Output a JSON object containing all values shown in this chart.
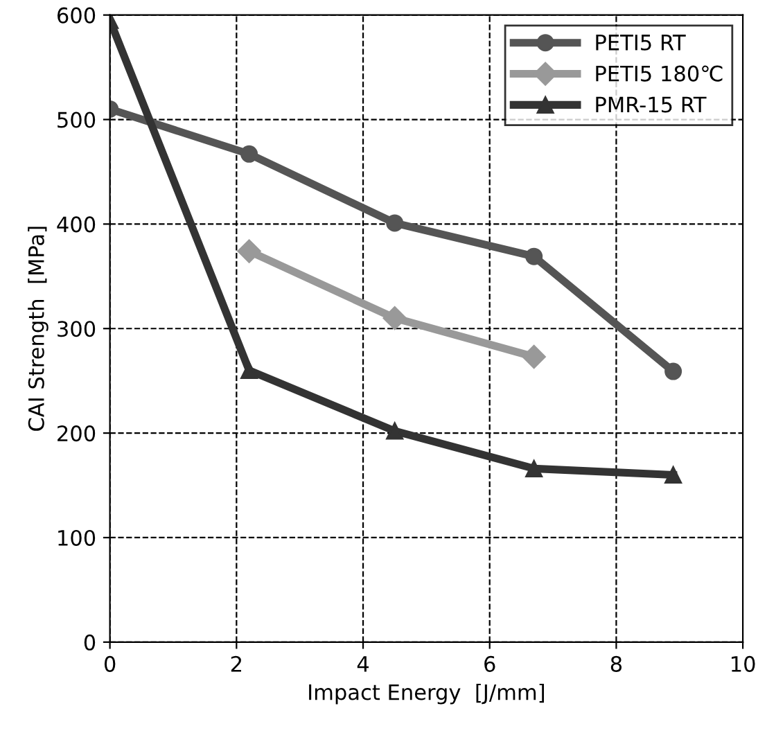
{
  "chart_data": {
    "type": "line",
    "xlabel": "Impact Energy  [J/mm]",
    "ylabel": "CAI Strength  [MPa]",
    "xlim": [
      0,
      10
    ],
    "xticks": [
      0,
      2,
      4,
      6,
      8,
      10
    ],
    "ylim": [
      0,
      600
    ],
    "yticks": [
      0,
      100,
      200,
      300,
      400,
      500,
      600
    ],
    "grid": true,
    "legend": "top right",
    "line_style": "solid",
    "series": [
      {
        "name": "PETI5 RT",
        "color": "#555555",
        "marker": "circle",
        "x": [
          0,
          2.2,
          4.5,
          6.7,
          8.9
        ],
        "values": [
          510,
          467,
          401,
          369,
          259
        ]
      },
      {
        "name": "PETI5 180℃",
        "color": "#999999",
        "marker": "diamond",
        "x": [
          2.2,
          4.5,
          6.7
        ],
        "values": [
          374,
          310,
          273
        ]
      },
      {
        "name": "PMR-15 RT",
        "color": "#333333",
        "marker": "triangle",
        "x": [
          0,
          2.2,
          4.5,
          6.7,
          8.9
        ],
        "values": [
          595,
          260,
          202,
          166,
          160
        ]
      }
    ]
  }
}
